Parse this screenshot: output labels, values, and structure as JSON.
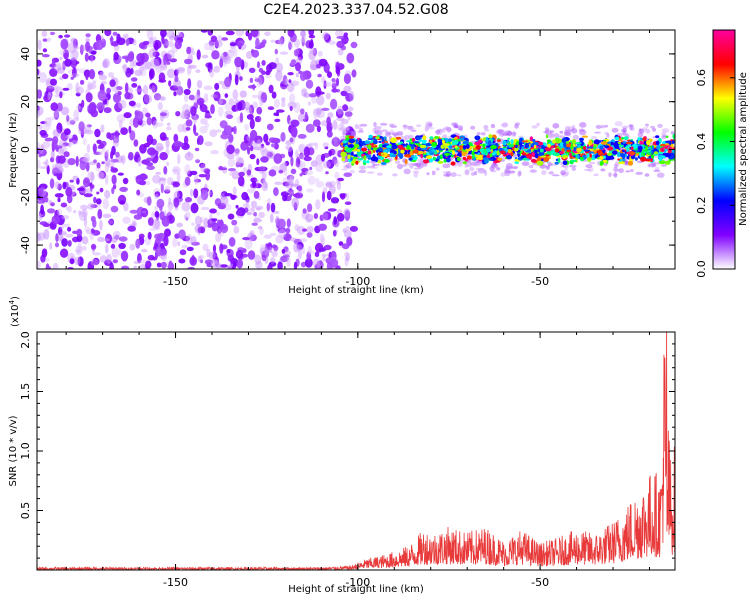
{
  "title": "C2E4.2023.337.04.52.G08",
  "chart_data": [
    {
      "type": "heatmap",
      "xlabel": "Height of straight line (km)",
      "ylabel": "Frequency (Hz)",
      "xlim": [
        -188,
        -13
      ],
      "ylim": [
        -50,
        50
      ],
      "xticks": [
        -150,
        -100,
        -50
      ],
      "yticks": [
        -40,
        -20,
        0,
        20,
        40
      ],
      "colorbar": {
        "label": "Normalized spectral amplitude",
        "range": [
          0,
          0.75
        ],
        "ticks": [
          0.0,
          0.2,
          0.4,
          0.6
        ],
        "colormap": [
          "#ffffff",
          "#8000ff",
          "#0000ff",
          "#00ffff",
          "#00ff00",
          "#ffff00",
          "#ff0000",
          "#ff00a0"
        ]
      },
      "regions": [
        {
          "x_range": [
            -188,
            -104
          ],
          "y_range": [
            -50,
            50
          ],
          "amplitude": [
            0.02,
            0.1
          ],
          "description": "broadband noise"
        },
        {
          "x_range": [
            -104,
            -13
          ],
          "center_y": 0,
          "half_width_hz": 6,
          "amplitude": [
            0.2,
            0.75
          ],
          "description": "narrow signal near 0 Hz"
        }
      ]
    },
    {
      "type": "line",
      "xlabel": "Height of straight line (km)",
      "ylabel": "SNR (10 * v/v)",
      "y_multiplier": "(x10",
      "y_multiplier_exp": "4",
      "xlim": [
        -188,
        -13
      ],
      "ylim": [
        0,
        2.0
      ],
      "xticks": [
        -150,
        -100,
        -50
      ],
      "yticks": [
        0.5,
        1.0,
        1.5,
        2.0
      ],
      "ytick_labels": [
        "0.5",
        "1.0",
        "1.5",
        "2.0"
      ],
      "color": "#e83a3a",
      "series": [
        {
          "x": [
            -188,
            -170,
            -150,
            -130,
            -110,
            -102,
            -98,
            -92,
            -86,
            -82,
            -79,
            -75,
            -70,
            -65,
            -60,
            -55,
            -50,
            -45,
            -40,
            -35,
            -30,
            -27,
            -24,
            -21,
            -19,
            -17,
            -15.8,
            -15.3,
            -14.8,
            -14,
            -13
          ],
          "y": [
            0.02,
            0.02,
            0.02,
            0.02,
            0.02,
            0.03,
            0.08,
            0.12,
            0.18,
            0.3,
            0.28,
            0.32,
            0.28,
            0.32,
            0.22,
            0.3,
            0.2,
            0.24,
            0.3,
            0.27,
            0.36,
            0.45,
            0.58,
            0.68,
            0.75,
            0.7,
            2.0,
            0.95,
            1.1,
            0.8,
            0.95
          ]
        }
      ]
    }
  ]
}
